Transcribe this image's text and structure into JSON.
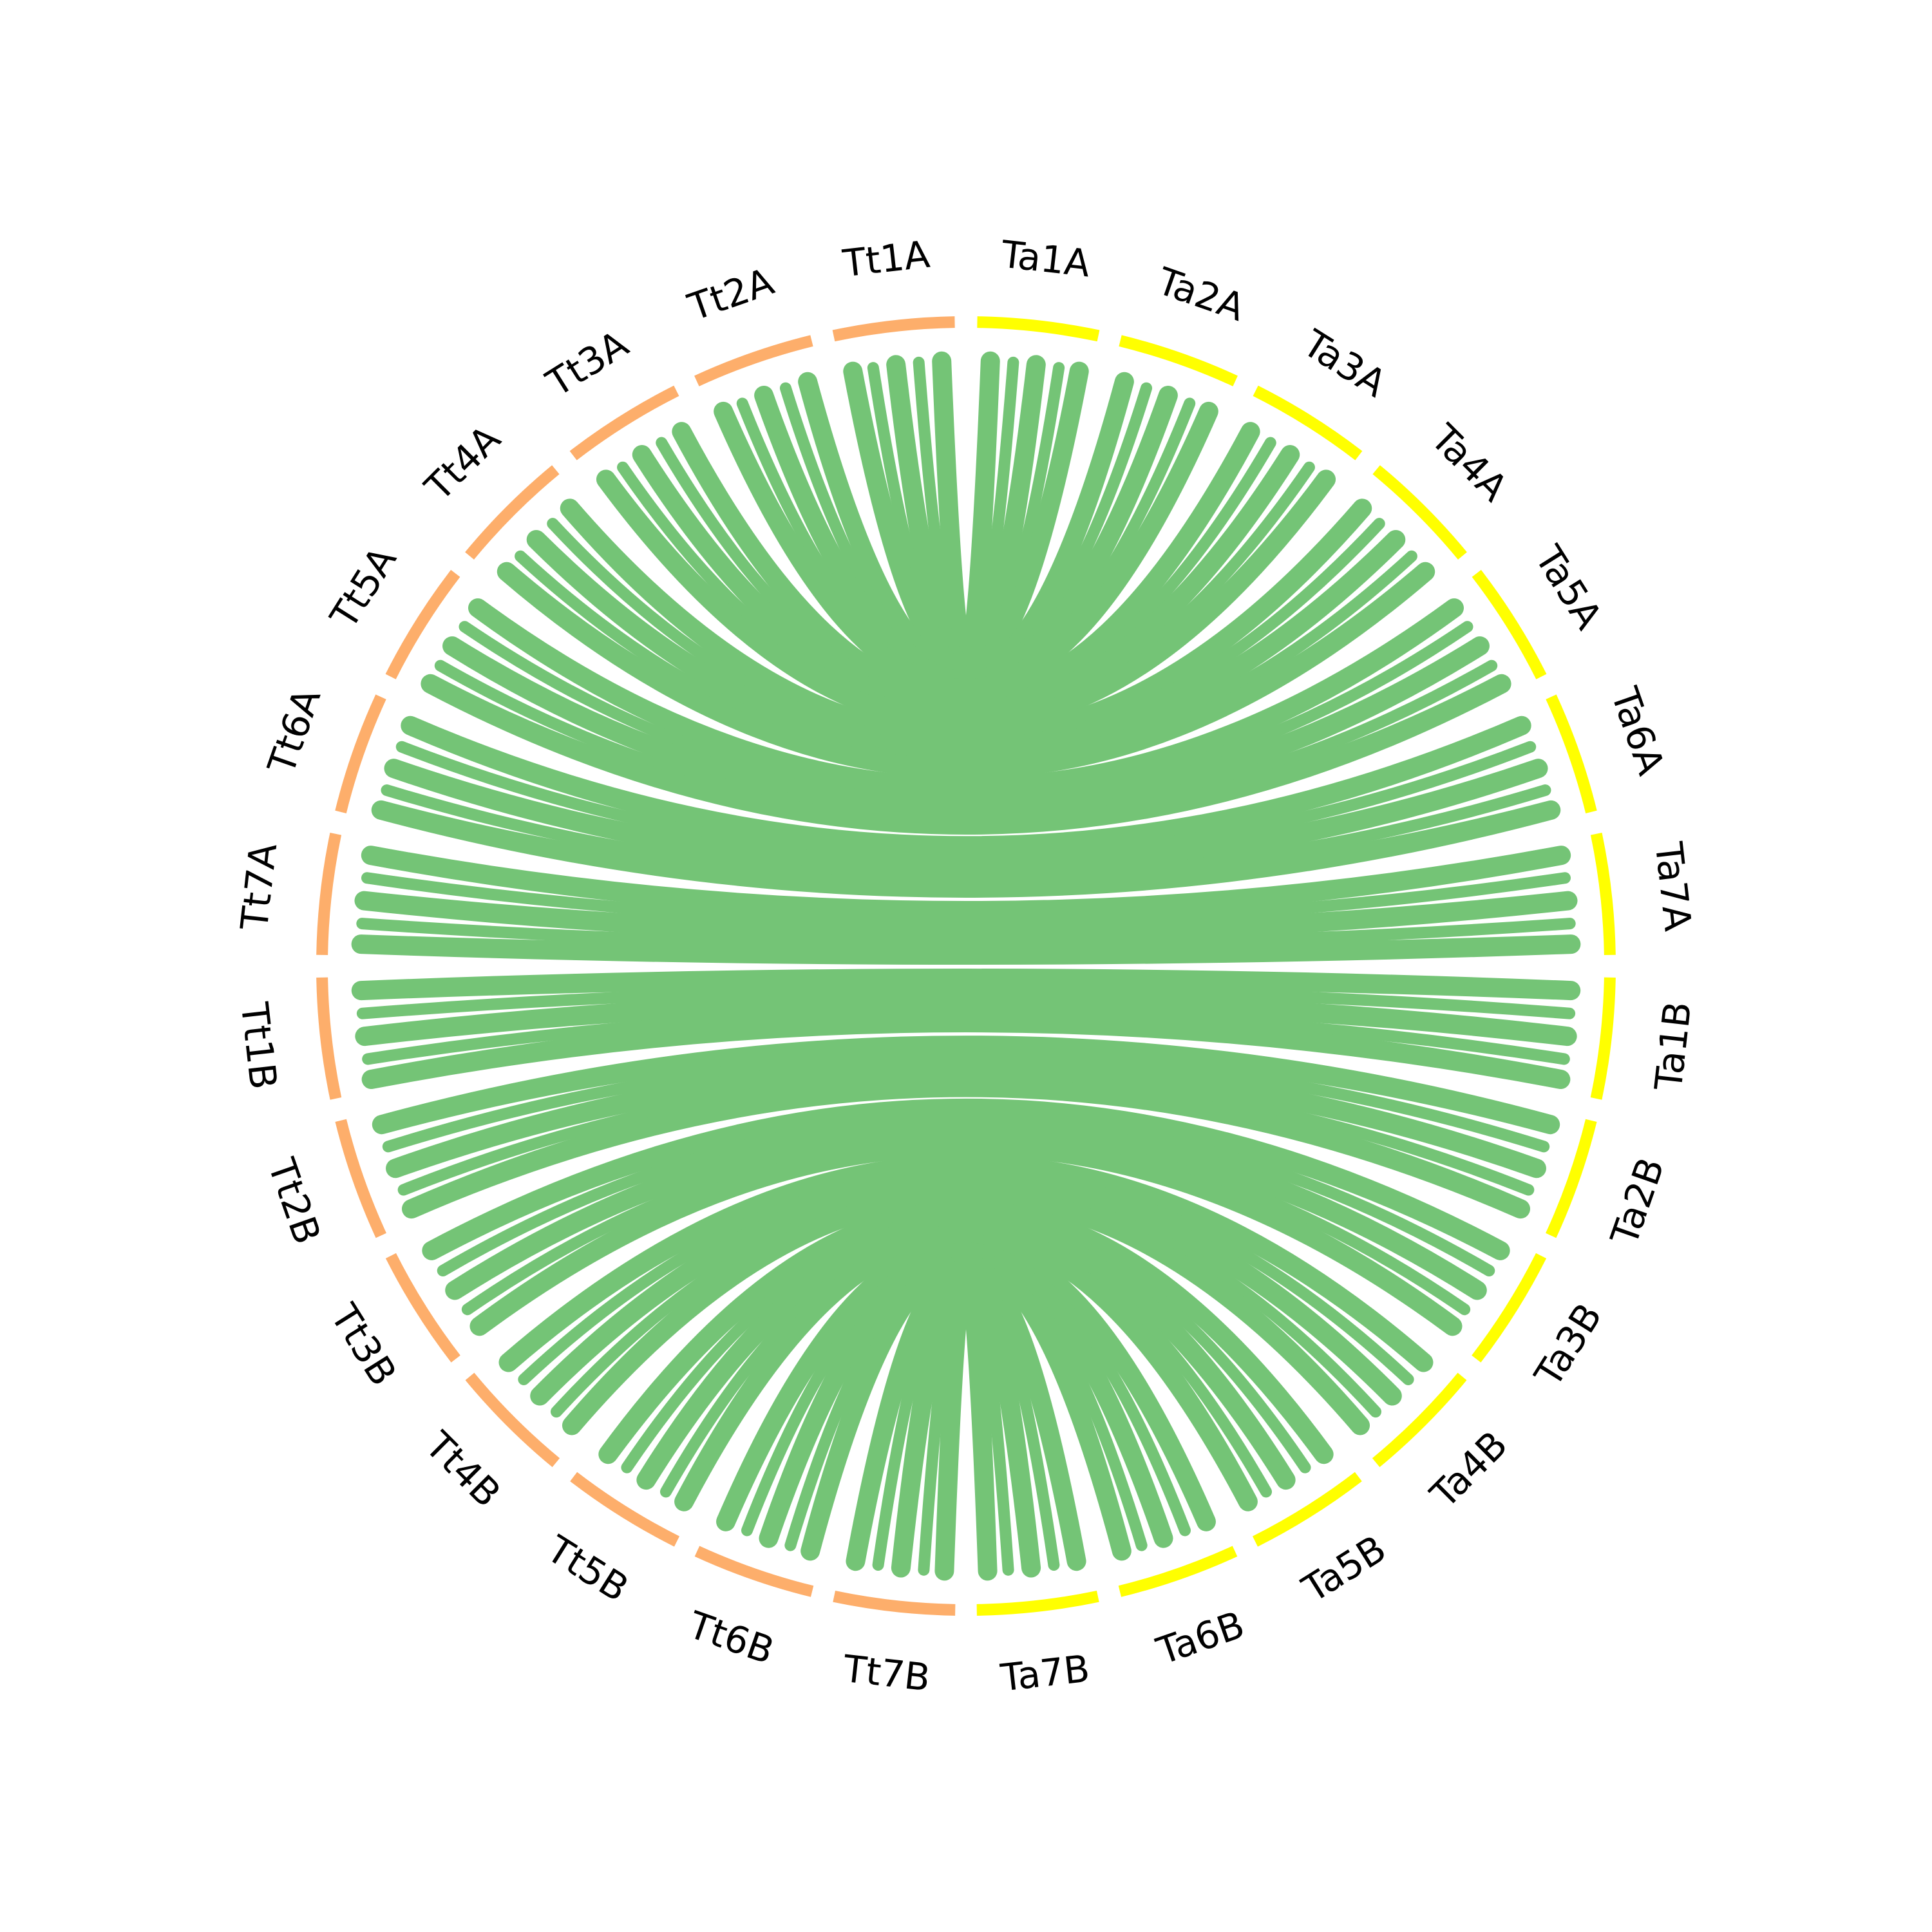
{
  "colors": {
    "left_genome": "#FDAE6B",
    "right_genome": "#FFFF00",
    "link": "#74C476"
  },
  "left_chromosomes": [
    "Tt1A",
    "Tt2A",
    "Tt3A",
    "Tt4A",
    "Tt5A",
    "Tt6A",
    "Tt7A",
    "Tt1B",
    "Tt2B",
    "Tt3B",
    "Tt4B",
    "Tt5B",
    "Tt6B",
    "Tt7B"
  ],
  "right_chromosomes": [
    "Ta1A",
    "Ta2A",
    "Ta3A",
    "Ta4A",
    "Ta5A",
    "Ta6A",
    "Ta7A",
    "Ta1B",
    "Ta2B",
    "Ta3B",
    "Ta4B",
    "Ta5B",
    "Ta6B",
    "Ta7B"
  ],
  "links": [
    {
      "from": "Tt1A",
      "to": "Ta1A"
    },
    {
      "from": "Tt2A",
      "to": "Ta2A"
    },
    {
      "from": "Tt3A",
      "to": "Ta3A"
    },
    {
      "from": "Tt4A",
      "to": "Ta4A"
    },
    {
      "from": "Tt5A",
      "to": "Ta5A"
    },
    {
      "from": "Tt6A",
      "to": "Ta6A"
    },
    {
      "from": "Tt7A",
      "to": "Ta7A"
    },
    {
      "from": "Tt1B",
      "to": "Ta1B"
    },
    {
      "from": "Tt2B",
      "to": "Ta2B"
    },
    {
      "from": "Tt3B",
      "to": "Ta3B"
    },
    {
      "from": "Tt4B",
      "to": "Ta4B"
    },
    {
      "from": "Tt5B",
      "to": "Ta5B"
    },
    {
      "from": "Tt6B",
      "to": "Ta6B"
    },
    {
      "from": "Tt7B",
      "to": "Ta7B"
    }
  ]
}
